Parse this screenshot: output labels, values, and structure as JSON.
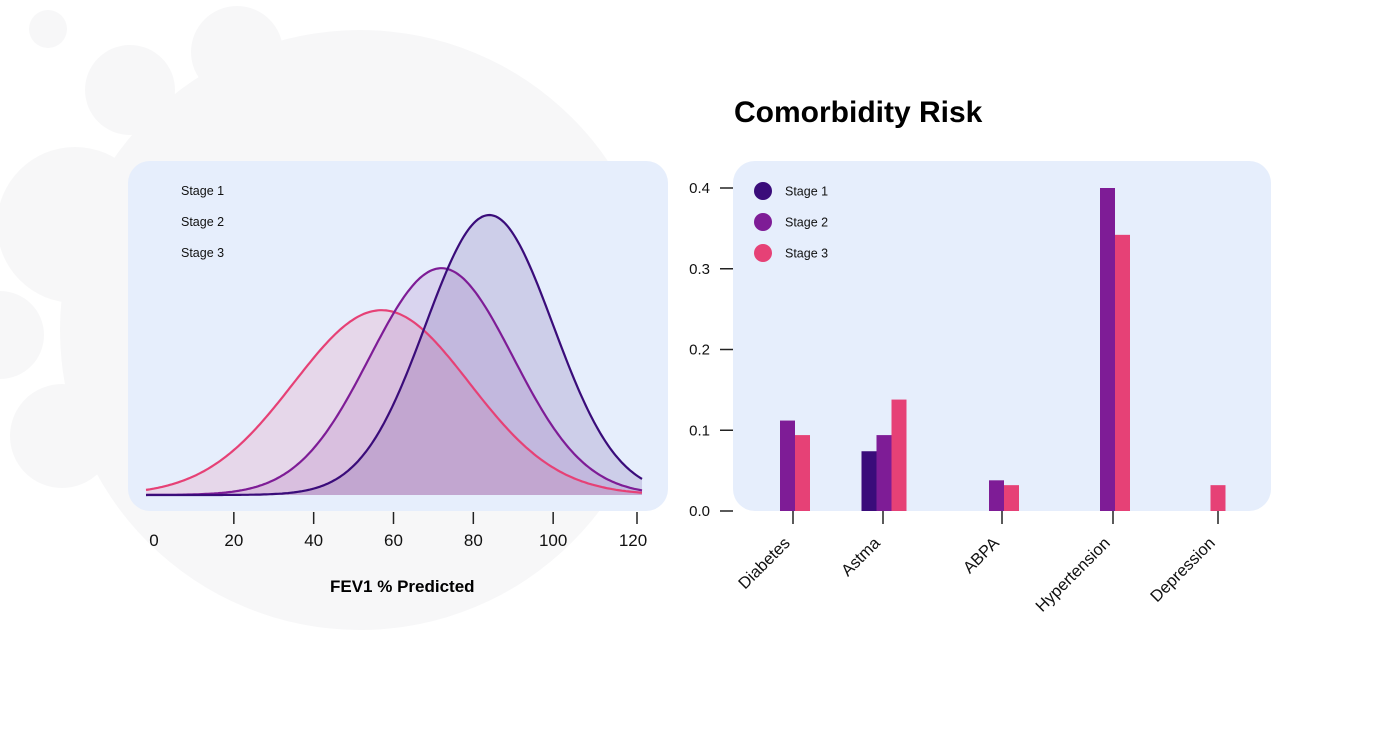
{
  "colors": {
    "stage1": "#3a0c7a",
    "stage2": "#7e1c96",
    "stage3": "#e64176",
    "panel": "#e6eefc",
    "blob": "#f7f7f8"
  },
  "chart_data": [
    {
      "type": "area",
      "name": "FEV1 distribution",
      "title": "",
      "xlabel": "FEV1 % Predicted",
      "ylabel": "",
      "xlim": [
        -2,
        122
      ],
      "xticks": [
        0,
        20,
        40,
        60,
        80,
        100,
        120
      ],
      "grid": false,
      "legend": {
        "placement": "top-left",
        "entries": [
          "Stage 1",
          "Stage 2",
          "Stage 3"
        ]
      },
      "series": [
        {
          "name": "Stage 1",
          "distribution": "normal",
          "mean": 84,
          "sd": 16,
          "peak": 1.0,
          "baseline": 0.0,
          "color_key": "stage1"
        },
        {
          "name": "Stage 2",
          "distribution": "normal",
          "mean": 72,
          "sd": 18,
          "peak": 0.81,
          "baseline": 0.0,
          "color_key": "stage2"
        },
        {
          "name": "Stage 3",
          "distribution": "normal",
          "mean": 57,
          "sd": 22,
          "peak": 0.66,
          "baseline": 0.0,
          "color_key": "stage3"
        }
      ]
    },
    {
      "type": "bar",
      "title": "Comorbidity Risk",
      "xlabel": "",
      "ylabel": "",
      "ylim": [
        0,
        0.4
      ],
      "yticks": [
        0.0,
        0.1,
        0.2,
        0.3,
        0.4
      ],
      "ytick_labels": [
        "0.0",
        "0.1",
        "0.2",
        "0.3",
        "0.4"
      ],
      "grid": false,
      "legend": {
        "placement": "top-left"
      },
      "categories": [
        "Diabetes",
        "Astma",
        "ABPA",
        "Hypertension",
        "Depression"
      ],
      "series": [
        {
          "name": "Stage 1",
          "color_key": "stage1",
          "values": [
            0,
            0.074,
            0,
            0,
            0
          ]
        },
        {
          "name": "Stage 2",
          "color_key": "stage2",
          "values": [
            0.112,
            0.094,
            0.038,
            0.4,
            0
          ]
        },
        {
          "name": "Stage 3",
          "color_key": "stage3",
          "values": [
            0.094,
            0.138,
            0.032,
            0.342,
            0.032
          ]
        }
      ]
    }
  ]
}
